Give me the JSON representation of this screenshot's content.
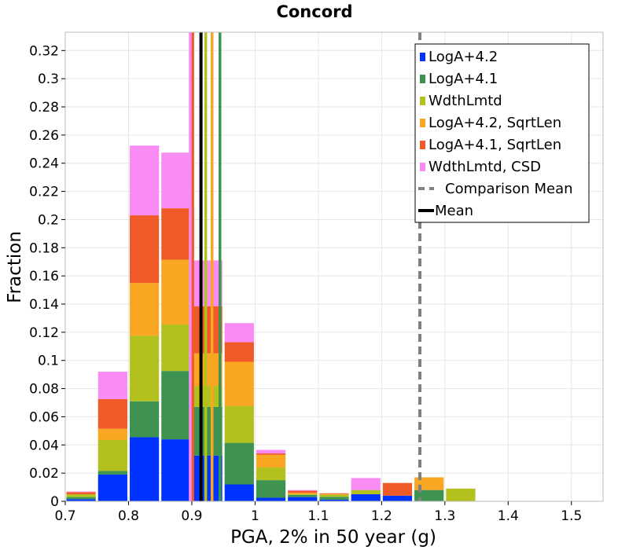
{
  "chart_data": {
    "type": "bar",
    "title": "Concord",
    "xlabel": "PGA, 2% in 50 year (g)",
    "ylabel": "Fraction",
    "xlim": [
      0.7,
      1.55
    ],
    "ylim": [
      0,
      0.333
    ],
    "x_ticks": [
      "0.7",
      "0.8",
      "0.9",
      "1",
      "1.1",
      "1.2",
      "1.3",
      "1.4",
      "1.5"
    ],
    "y_ticks": [
      "0",
      "0.02",
      "0.04",
      "0.06",
      "0.08",
      "0.1",
      "0.12",
      "0.14",
      "0.16",
      "0.18",
      "0.2",
      "0.22",
      "0.24",
      "0.26",
      "0.28",
      "0.3",
      "0.32"
    ],
    "grid": true,
    "legend_position": "top-right",
    "bin_width": 0.05,
    "bin_starts": [
      0.7,
      0.75,
      0.8,
      0.85,
      0.9,
      0.95,
      1.0,
      1.05,
      1.1,
      1.15,
      1.2,
      1.25,
      1.3
    ],
    "stacked": true,
    "series": [
      {
        "name": "LogA+4.2",
        "color": "#0033ff",
        "values": [
          0.0015,
          0.019,
          0.0455,
          0.044,
          0.0325,
          0.012,
          0.0025,
          0.003,
          0.0012,
          0.005,
          0.004,
          0.0,
          0.0
        ]
      },
      {
        "name": "LogA+4.1",
        "color": "#3f9350",
        "values": [
          0.0015,
          0.0025,
          0.0255,
          0.0485,
          0.0345,
          0.0295,
          0.0125,
          0.0015,
          0.002,
          0.0,
          0.0,
          0.008,
          0.0
        ]
      },
      {
        "name": "WdthLmtd",
        "color": "#b2c11e",
        "values": [
          0.002,
          0.022,
          0.0465,
          0.033,
          0.015,
          0.026,
          0.009,
          0.0005,
          0.0015,
          0.003,
          0.0,
          0.0,
          0.009
        ]
      },
      {
        "name": "LogA+4.2, SqrtLen",
        "color": "#f9a623",
        "values": [
          0.0,
          0.008,
          0.0375,
          0.046,
          0.023,
          0.0315,
          0.009,
          0.001,
          0.0005,
          0.0,
          0.0,
          0.009,
          0.0
        ]
      },
      {
        "name": "LogA+4.1, SqrtLen",
        "color": "#f05a28",
        "values": [
          0.0015,
          0.021,
          0.048,
          0.0365,
          0.0335,
          0.014,
          0.001,
          0.0015,
          0.0005,
          0.0,
          0.009,
          0.0,
          0.0
        ]
      },
      {
        "name": "WdthLmtd, CSD",
        "color": "#f98cf4",
        "values": [
          0.0005,
          0.0195,
          0.0495,
          0.0395,
          0.0325,
          0.0135,
          0.0025,
          0.0005,
          0.0,
          0.0085,
          0.0,
          0.0,
          0.0
        ]
      }
    ],
    "mean_lines": [
      {
        "color": "#f05a28",
        "x": 0.9015
      },
      {
        "color": "#f98cf4",
        "x": 0.8975
      },
      {
        "color": "#b2c11e",
        "x": 0.922
      },
      {
        "color": "#f9a623",
        "x": 0.932
      },
      {
        "color": "#3f9350",
        "x": 0.9445
      },
      {
        "color": "#000000",
        "x": 0.9145
      }
    ],
    "comparison_mean": {
      "x": 1.2605,
      "color": "#808080"
    },
    "legend_extra": [
      {
        "name": "Comparison Mean",
        "style": "dashed",
        "color": "#808080"
      },
      {
        "name": "Mean",
        "style": "solid",
        "color": "#000000"
      }
    ]
  }
}
